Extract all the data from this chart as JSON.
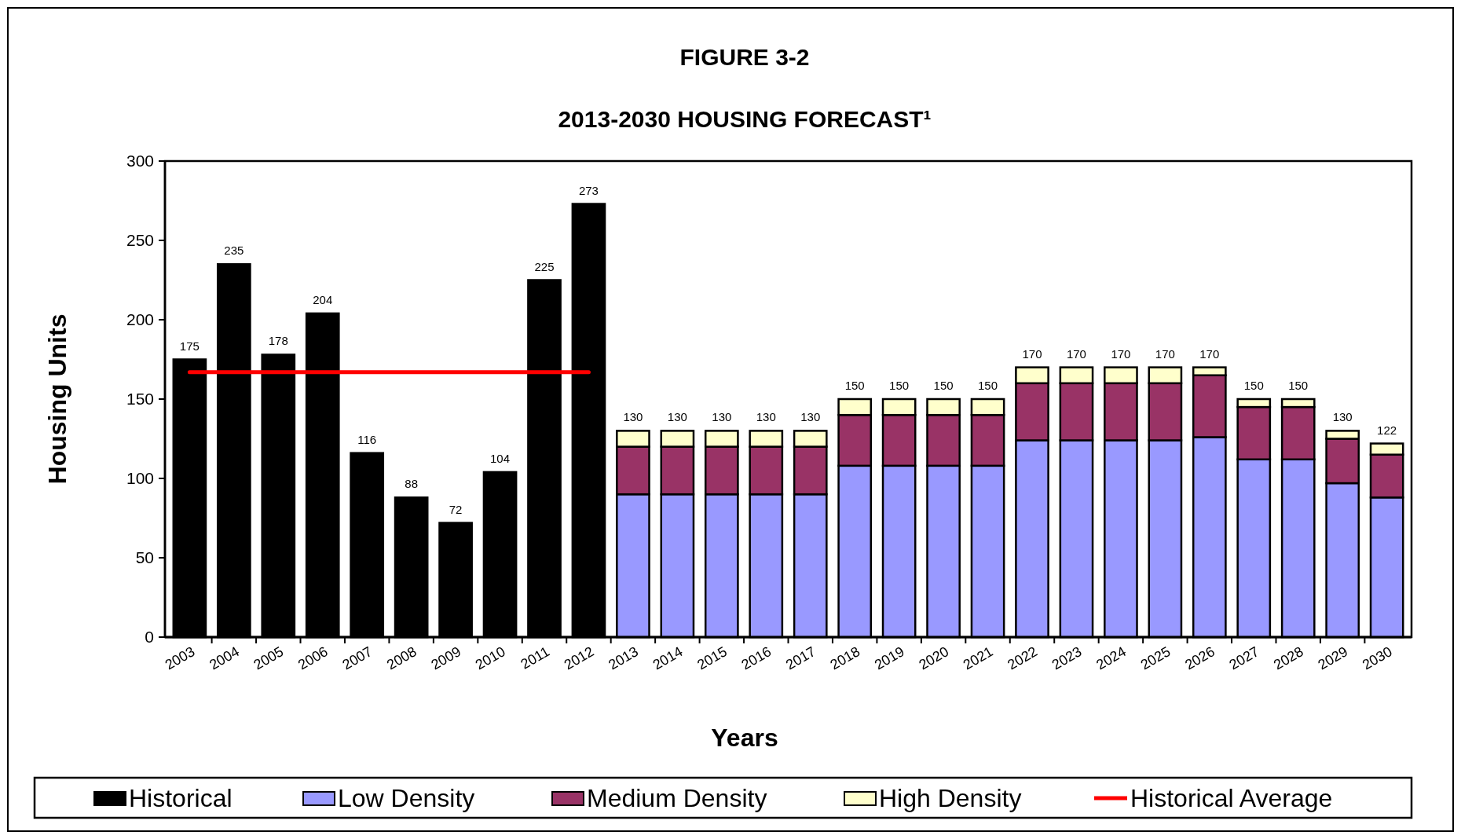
{
  "chart_data": {
    "type": "bar",
    "stacked": true,
    "title": "FIGURE 3-2",
    "subtitle": "2013-2030 HOUSING FORECAST¹",
    "xlabel": "Years",
    "ylabel": "Housing Units",
    "categories": [
      "2003",
      "2004",
      "2005",
      "2006",
      "2007",
      "2008",
      "2009",
      "2010",
      "2011",
      "2012",
      "2013",
      "2014",
      "2015",
      "2016",
      "2017",
      "2018",
      "2019",
      "2020",
      "2021",
      "2022",
      "2023",
      "2024",
      "2025",
      "2026",
      "2027",
      "2028",
      "2029",
      "2030"
    ],
    "series": [
      {
        "name": "Historical",
        "color": "#000000",
        "values": [
          175,
          235,
          178,
          204,
          116,
          88,
          72,
          104,
          225,
          273,
          null,
          null,
          null,
          null,
          null,
          null,
          null,
          null,
          null,
          null,
          null,
          null,
          null,
          null,
          null,
          null,
          null,
          null
        ]
      },
      {
        "name": "Low Density",
        "color": "#9999ff",
        "values": [
          null,
          null,
          null,
          null,
          null,
          null,
          null,
          null,
          null,
          null,
          90,
          90,
          90,
          90,
          90,
          108,
          108,
          108,
          108,
          124,
          124,
          124,
          124,
          126,
          112,
          112,
          97,
          88
        ]
      },
      {
        "name": "Medium Density",
        "color": "#993366",
        "values": [
          null,
          null,
          null,
          null,
          null,
          null,
          null,
          null,
          null,
          null,
          30,
          30,
          30,
          30,
          30,
          32,
          32,
          32,
          32,
          36,
          36,
          36,
          36,
          39,
          33,
          33,
          28,
          27
        ]
      },
      {
        "name": "High Density",
        "color": "#ffffcc",
        "values": [
          null,
          null,
          null,
          null,
          null,
          null,
          null,
          null,
          null,
          null,
          10,
          10,
          10,
          10,
          10,
          10,
          10,
          10,
          10,
          10,
          10,
          10,
          10,
          5,
          5,
          5,
          5,
          7
        ]
      },
      {
        "name": "Historical Average",
        "type": "line",
        "color": "#ff0000",
        "values": [
          167,
          167,
          167,
          167,
          167,
          167,
          167,
          167,
          167,
          167,
          null,
          null,
          null,
          null,
          null,
          null,
          null,
          null,
          null,
          null,
          null,
          null,
          null,
          null,
          null,
          null,
          null,
          null
        ]
      }
    ],
    "totals": [
      "175",
      "235",
      "178",
      "204",
      "116",
      "88",
      "72",
      "104",
      "225",
      "273",
      "130",
      "130",
      "130",
      "130",
      "130",
      "150",
      "150",
      "150",
      "150",
      "170",
      "170",
      "170",
      "170",
      "170",
      "150",
      "150",
      "130",
      "122"
    ],
    "ylim": [
      0,
      300
    ],
    "yticks": [
      0,
      50,
      100,
      150,
      200,
      250,
      300
    ],
    "grid": false,
    "legend": "bottom"
  }
}
